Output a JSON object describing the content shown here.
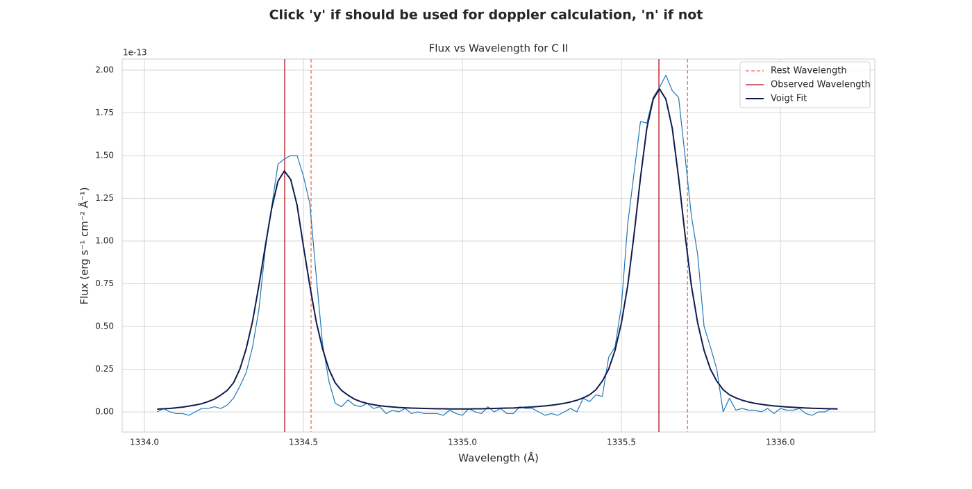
{
  "chart_data": {
    "type": "line",
    "suptitle": "Click 'y' if should be used for doppler calculation, 'n' if not",
    "title": "Flux vs Wavelength for C II",
    "x_label": "Wavelength (Å)",
    "y_label": "Flux (erg s⁻¹ cm⁻² Å⁻¹)",
    "y_offset_label": "1e-13",
    "xlim": [
      1333.93,
      1336.297
    ],
    "ylim": [
      -0.118,
      2.065
    ],
    "xticks": [
      {
        "value": 1334,
        "label": "1334.0"
      },
      1334.5,
      {
        "value": 1335,
        "label": "1335.0"
      },
      1335.5,
      {
        "value": 1336,
        "label": "1336.0"
      }
    ],
    "yticks": [
      {
        "value": 0,
        "label": "0.00"
      },
      0.25,
      {
        "value": 0.5,
        "label": "0.50"
      },
      0.75,
      {
        "value": 1,
        "label": "1.00"
      },
      1.25,
      {
        "value": 1.5,
        "label": "1.50"
      },
      1.75,
      {
        "value": 2,
        "label": "2.00"
      }
    ],
    "grid": true,
    "legend_position": "upper-right",
    "x": [
      1334.04,
      1334.06,
      1334.08,
      1334.1,
      1334.12,
      1334.14,
      1334.16,
      1334.18,
      1334.2,
      1334.22,
      1334.24,
      1334.26,
      1334.28,
      1334.3,
      1334.32,
      1334.34,
      1334.36,
      1334.38,
      1334.4,
      1334.42,
      1334.44,
      1334.46,
      1334.48,
      1334.5,
      1334.52,
      1334.54,
      1334.56,
      1334.58,
      1334.6,
      1334.62,
      1334.64,
      1334.66,
      1334.68,
      1334.7,
      1334.72,
      1334.74,
      1334.76,
      1334.78,
      1334.8,
      1334.82,
      1334.84,
      1334.86,
      1334.88,
      1334.9,
      1334.92,
      1334.94,
      1334.96,
      1334.98,
      1335.0,
      1335.02,
      1335.04,
      1335.06,
      1335.08,
      1335.1,
      1335.12,
      1335.14,
      1335.16,
      1335.18,
      1335.2,
      1335.22,
      1335.24,
      1335.26,
      1335.28,
      1335.3,
      1335.32,
      1335.34,
      1335.36,
      1335.38,
      1335.4,
      1335.42,
      1335.44,
      1335.46,
      1335.48,
      1335.5,
      1335.52,
      1335.54,
      1335.56,
      1335.58,
      1335.6,
      1335.62,
      1335.64,
      1335.66,
      1335.68,
      1335.7,
      1335.72,
      1335.74,
      1335.76,
      1335.78,
      1335.8,
      1335.82,
      1335.84,
      1335.86,
      1335.88,
      1335.9,
      1335.92,
      1335.94,
      1335.96,
      1335.98,
      1336.0,
      1336.02,
      1336.04,
      1336.06,
      1336.08,
      1336.1,
      1336.12,
      1336.14,
      1336.16,
      1336.18
    ],
    "series": [
      {
        "color": "#1f77b4",
        "width": 1.2,
        "values": [
          0.0,
          0.02,
          0.0,
          -0.01,
          -0.01,
          -0.02,
          0.0,
          0.02,
          0.02,
          0.03,
          0.02,
          0.04,
          0.08,
          0.15,
          0.23,
          0.38,
          0.6,
          0.95,
          1.2,
          1.45,
          1.48,
          1.5,
          1.5,
          1.38,
          1.22,
          0.8,
          0.4,
          0.18,
          0.05,
          0.03,
          0.07,
          0.04,
          0.03,
          0.05,
          0.02,
          0.03,
          -0.01,
          0.01,
          0.0,
          0.02,
          -0.01,
          0.0,
          -0.01,
          -0.01,
          -0.01,
          -0.02,
          0.01,
          -0.01,
          -0.02,
          0.02,
          0.0,
          -0.01,
          0.03,
          0.0,
          0.02,
          -0.01,
          -0.01,
          0.03,
          0.02,
          0.02,
          0.0,
          -0.02,
          -0.01,
          -0.02,
          0.0,
          0.02,
          0.0,
          0.08,
          0.06,
          0.1,
          0.09,
          0.32,
          0.38,
          0.62,
          1.1,
          1.4,
          1.7,
          1.69,
          1.84,
          1.9,
          1.97,
          1.88,
          1.84,
          1.5,
          1.15,
          0.92,
          0.5,
          0.38,
          0.25,
          0.0,
          0.08,
          0.01,
          0.02,
          0.01,
          0.01,
          0.0,
          0.02,
          -0.01,
          0.02,
          0.01,
          0.01,
          0.02,
          -0.01,
          -0.02,
          0.0,
          0.0,
          0.02,
          0.02
        ]
      },
      {
        "name": "Voigt Fit",
        "color": "#0f1b4d",
        "width": 2,
        "values": [
          0.016,
          0.018,
          0.02,
          0.024,
          0.028,
          0.034,
          0.04,
          0.048,
          0.06,
          0.075,
          0.098,
          0.125,
          0.17,
          0.25,
          0.37,
          0.53,
          0.74,
          0.97,
          1.19,
          1.35,
          1.41,
          1.36,
          1.21,
          0.97,
          0.74,
          0.53,
          0.37,
          0.25,
          0.17,
          0.125,
          0.098,
          0.075,
          0.06,
          0.05,
          0.042,
          0.036,
          0.032,
          0.029,
          0.026,
          0.024,
          0.022,
          0.021,
          0.02,
          0.019,
          0.018,
          0.018,
          0.017,
          0.017,
          0.017,
          0.017,
          0.018,
          0.018,
          0.019,
          0.02,
          0.021,
          0.022,
          0.023,
          0.025,
          0.027,
          0.029,
          0.032,
          0.035,
          0.039,
          0.044,
          0.05,
          0.058,
          0.068,
          0.082,
          0.1,
          0.13,
          0.18,
          0.25,
          0.36,
          0.52,
          0.74,
          1.04,
          1.37,
          1.66,
          1.83,
          1.89,
          1.83,
          1.66,
          1.37,
          1.04,
          0.74,
          0.52,
          0.36,
          0.25,
          0.18,
          0.13,
          0.1,
          0.082,
          0.068,
          0.058,
          0.05,
          0.044,
          0.039,
          0.035,
          0.032,
          0.029,
          0.027,
          0.025,
          0.023,
          0.021,
          0.02,
          0.019,
          0.018,
          0.017
        ]
      }
    ],
    "vlines": [
      {
        "name": "Rest Wavelength",
        "color": "#f26b4f",
        "dashed": true,
        "values": [
          1334.524,
          1335.708
        ]
      },
      {
        "name": "Observed Wavelength",
        "color": "#b0101a",
        "dashed": false,
        "values": [
          1334.441,
          1335.618
        ]
      }
    ]
  }
}
